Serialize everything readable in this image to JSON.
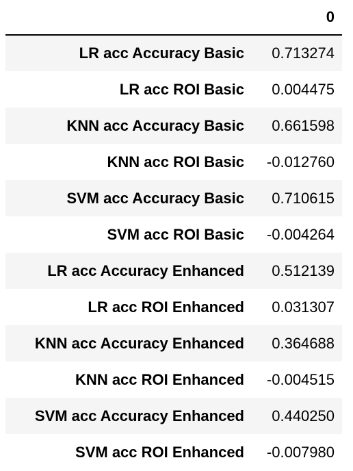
{
  "table": {
    "column_header": "0",
    "rows": [
      {
        "label": "LR acc Accuracy Basic",
        "value": "0.713274"
      },
      {
        "label": "LR acc ROI Basic",
        "value": "0.004475"
      },
      {
        "label": "KNN acc Accuracy Basic",
        "value": "0.661598"
      },
      {
        "label": "KNN acc ROI Basic",
        "value": "-0.012760"
      },
      {
        "label": "SVM acc Accuracy Basic",
        "value": "0.710615"
      },
      {
        "label": "SVM acc ROI Basic",
        "value": "-0.004264"
      },
      {
        "label": "LR acc Accuracy Enhanced",
        "value": "0.512139"
      },
      {
        "label": "LR acc ROI Enhanced",
        "value": "0.031307"
      },
      {
        "label": "KNN acc Accuracy Enhanced",
        "value": "0.364688"
      },
      {
        "label": "KNN acc ROI Enhanced",
        "value": "-0.004515"
      },
      {
        "label": "SVM acc Accuracy Enhanced",
        "value": "0.440250"
      },
      {
        "label": "SVM acc ROI Enhanced",
        "value": "-0.007980"
      }
    ]
  },
  "colors": {
    "stripe": "#f5f5f5",
    "background": "#ffffff",
    "text": "#000000",
    "header_rule": "#000000"
  }
}
